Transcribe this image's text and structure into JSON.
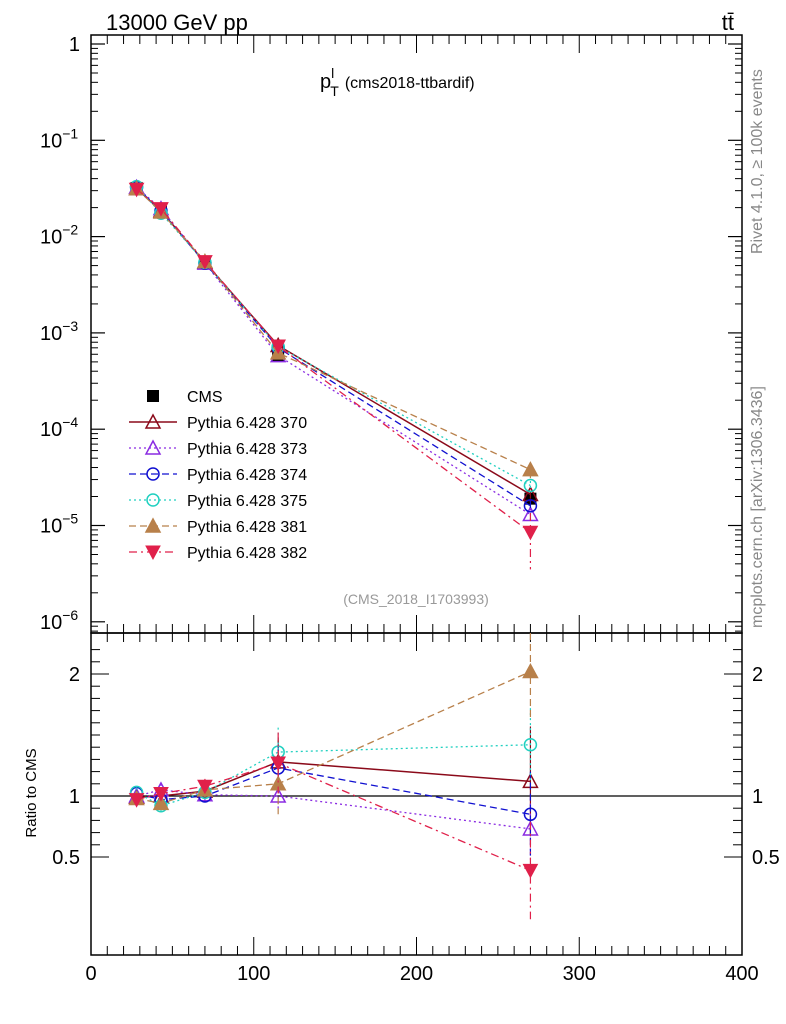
{
  "header": {
    "left_label": "13000 GeV pp",
    "right_label": "tt̄"
  },
  "plot_title": {
    "main": "p",
    "superscript": "l",
    "subscript": "T",
    "analysis_tag": "(cms2018-ttbardif)"
  },
  "side_labels": {
    "rivet": "Rivet 4.1.0, ≥ 100k events",
    "site": "mcplots.cern.ch [arXiv:1306.3436]"
  },
  "reference_label": "(CMS_2018_I1703993)",
  "colors": {
    "cms": "#000000",
    "p370": "#8b0a1a",
    "p373": "#8a2be2",
    "p374": "#1010d0",
    "p375": "#20d0c0",
    "p381": "#b8804a",
    "p382": "#e0204a",
    "gray_text": "#999999"
  },
  "chart_data": [
    {
      "type": "scatter",
      "panel": "main",
      "scale": "log",
      "ylim": [
        6e-07,
        1.5
      ],
      "xlim": [
        0,
        400
      ],
      "y_tick_labels": [
        {
          "base": "1",
          "exp": ""
        },
        {
          "base": "10",
          "exp": "−1"
        },
        {
          "base": "10",
          "exp": "−2"
        },
        {
          "base": "10",
          "exp": "−3"
        },
        {
          "base": "10",
          "exp": "−4"
        },
        {
          "base": "10",
          "exp": "−5"
        },
        {
          "base": "10",
          "exp": "−6"
        }
      ],
      "x": [
        28,
        43,
        70,
        115,
        270
      ],
      "series": [
        {
          "name": "CMS",
          "key": "cms",
          "marker": "filled-square",
          "line": "none",
          "values": [
            0.032,
            0.019,
            0.0053,
            0.00058,
            1.9e-05
          ],
          "err_high": [
            0,
            0,
            0,
            0,
            0
          ],
          "err_low": [
            0,
            0,
            0,
            0,
            0
          ]
        },
        {
          "name": "Pythia 6.428 370",
          "key": "p370",
          "marker": "open-triangle-up",
          "line": "solid",
          "values": [
            0.0315,
            0.0185,
            0.0054,
            0.00074,
            2.1e-05
          ],
          "err_high": [
            0,
            0,
            0,
            0,
            2e-06
          ],
          "err_low": [
            0,
            0,
            0,
            0,
            2e-06
          ]
        },
        {
          "name": "Pythia 6.428 373",
          "key": "p373",
          "marker": "open-triangle-up",
          "line": "dotted",
          "values": [
            0.0325,
            0.0195,
            0.0053,
            0.00058,
            1.3e-05
          ],
          "err_high": [
            0,
            0,
            0,
            0,
            2e-06
          ],
          "err_low": [
            0,
            0,
            0,
            0,
            2e-06
          ]
        },
        {
          "name": "Pythia 6.428 374",
          "key": "p374",
          "marker": "open-circle",
          "line": "dashed",
          "values": [
            0.0325,
            0.0185,
            0.0053,
            0.0007,
            1.6e-05
          ],
          "err_high": [
            0,
            0,
            0,
            0,
            2e-06
          ],
          "err_low": [
            0,
            0,
            0,
            0,
            2e-06
          ]
        },
        {
          "name": "Pythia 6.428 375",
          "key": "p375",
          "marker": "open-circle",
          "line": "dotted",
          "values": [
            0.033,
            0.0175,
            0.0054,
            0.00072,
            2.6e-05
          ],
          "err_high": [
            0,
            0,
            0,
            0,
            3e-06
          ],
          "err_low": [
            0,
            0,
            0,
            0,
            3e-06
          ]
        },
        {
          "name": "Pythia 6.428 381",
          "key": "p381",
          "marker": "filled-triangle-up",
          "line": "dashed",
          "values": [
            0.0315,
            0.018,
            0.0055,
            0.00062,
            3.8e-05
          ],
          "err_high": [
            0,
            0,
            0,
            0,
            7e-06
          ],
          "err_low": [
            0,
            0,
            0,
            0,
            7e-06
          ]
        },
        {
          "name": "Pythia 6.428 382",
          "key": "p382",
          "marker": "filled-triangle-down",
          "line": "dashdot",
          "values": [
            0.031,
            0.0195,
            0.0055,
            0.00073,
            8.5e-06
          ],
          "err_high": [
            0,
            0,
            0,
            0,
            5e-06
          ],
          "err_low": [
            0,
            0,
            0,
            0,
            5e-06
          ]
        }
      ]
    },
    {
      "type": "scatter",
      "panel": "ratio",
      "ylabel": "Ratio to CMS",
      "ylim": [
        0.43,
        2.3
      ],
      "xlim": [
        0,
        400
      ],
      "y_tick_labels": [
        "2",
        "1",
        "0.5"
      ],
      "x_tick_labels": [
        "0",
        "100",
        "200",
        "300",
        "400"
      ],
      "x": [
        28,
        43,
        70,
        115,
        270
      ],
      "series": [
        {
          "key": "p370",
          "values": [
            0.99,
            1.0,
            1.04,
            1.28,
            1.12
          ],
          "err": [
            0.03,
            0.04,
            0.05,
            0.2,
            0.45
          ]
        },
        {
          "key": "p373",
          "values": [
            1.0,
            1.05,
            1.01,
            1.0,
            0.73
          ],
          "err": [
            0.03,
            0.05,
            0.05,
            0.12,
            0.25
          ]
        },
        {
          "key": "p374",
          "values": [
            1.02,
            0.97,
            1.0,
            1.23,
            0.85
          ],
          "err": [
            0.03,
            0.04,
            0.05,
            0.2,
            0.35
          ]
        },
        {
          "key": "p375",
          "values": [
            1.03,
            0.92,
            1.03,
            1.36,
            1.42
          ],
          "err": [
            0.04,
            0.05,
            0.06,
            0.2,
            0.3
          ]
        },
        {
          "key": "p381",
          "values": [
            0.98,
            0.94,
            1.05,
            1.1,
            2.02
          ],
          "err": [
            0.03,
            0.04,
            0.05,
            0.25,
            0.4
          ]
        },
        {
          "key": "p382",
          "values": [
            0.97,
            1.02,
            1.08,
            1.27,
            0.39
          ],
          "err": [
            0.03,
            0.05,
            0.06,
            0.25,
            0.4
          ]
        }
      ]
    }
  ]
}
